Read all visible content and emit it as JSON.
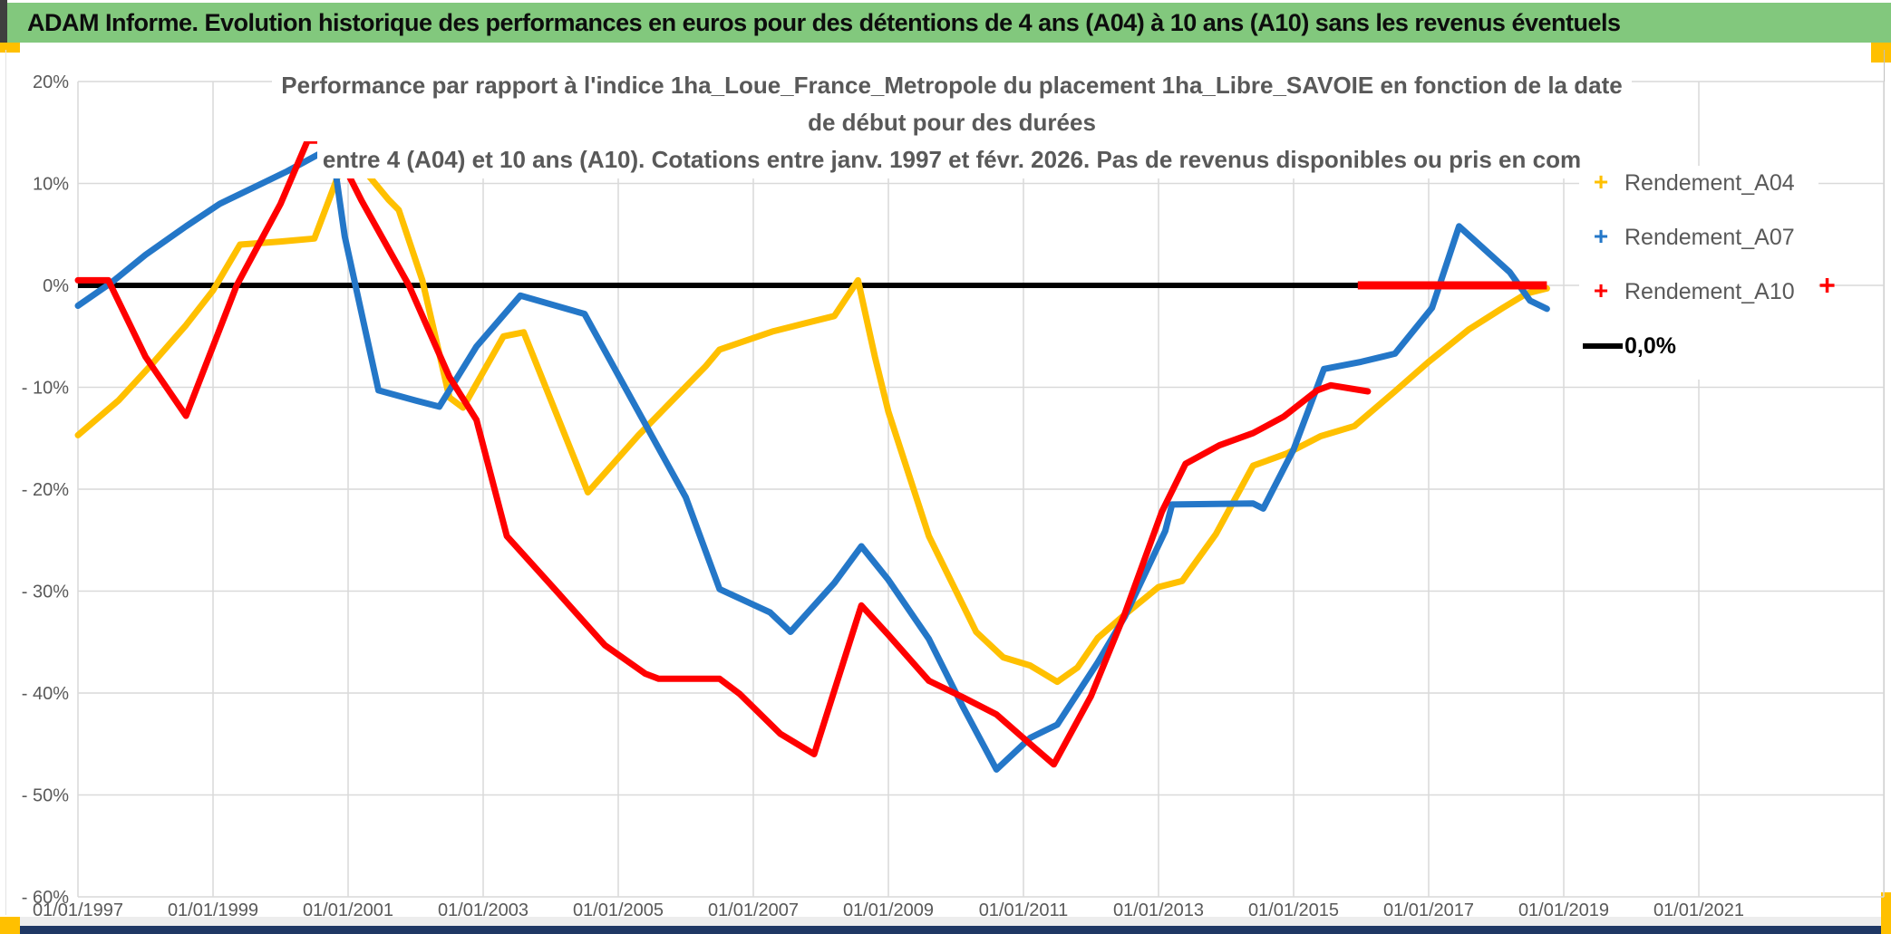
{
  "banner": {
    "title": "ADAM Informe. Evolution historique des performances en euros pour des détentions de 4 ans (A04) à 10 ans (A10) sans les revenus éventuels"
  },
  "colors": {
    "banner_green": "#82c87d",
    "accent_yellow": "#ffc000",
    "bottom_navy": "#1f3864",
    "series_a04": "#ffc000",
    "series_a07": "#2477c8",
    "series_a10": "#ff0000",
    "zero_line": "#000000",
    "grid": "#d9d9d9",
    "axis_text": "#595959",
    "title_text": "#595959"
  },
  "chart_data": {
    "type": "line",
    "title_line1": "Performance par rapport à l'indice 1ha_Loue_France_Metropole  du placement 1ha_Libre_SAVOIE en fonction de la date de début pour des durées",
    "title_line2": "entre 4 (A04) et 10 ans (A10). Cotations entre janv. 1997 et févr. 2026. Pas de revenus disponibles ou pris en com",
    "grid": true,
    "legend_position": "inside-right",
    "x_axis": {
      "tick_years": [
        1997,
        1999,
        2001,
        2003,
        2005,
        2007,
        2009,
        2011,
        2013,
        2015,
        2017,
        2019,
        2021
      ],
      "tick_labels": [
        "01/01/1997",
        "01/01/1999",
        "01/01/2001",
        "01/01/2003",
        "01/01/2005",
        "01/01/2007",
        "01/01/2009",
        "01/01/2011",
        "01/01/2013",
        "01/01/2015",
        "01/01/2017",
        "01/01/2019",
        "01/01/2021"
      ],
      "min_year": 1997.0,
      "max_year": 2023.75
    },
    "y_axis": {
      "unit": "%",
      "tick_values": [
        20,
        10,
        0,
        -10,
        -20,
        -30,
        -40,
        -50,
        -60
      ],
      "tick_labels": [
        "20%",
        "10%",
        "0%",
        "- 10%",
        "- 20%",
        "- 30%",
        "- 40%",
        "- 50%",
        "- 60%"
      ],
      "min": -60,
      "max": 20
    },
    "series": [
      {
        "name": "Rendement_A04",
        "color": "#ffc000",
        "marker": "+",
        "points": [
          [
            1997.0,
            -14.7
          ],
          [
            1997.6,
            -11.3
          ],
          [
            1998.1,
            -7.7
          ],
          [
            1998.6,
            -3.9
          ],
          [
            1999.0,
            -0.5
          ],
          [
            1999.4,
            4.0
          ],
          [
            2000.0,
            4.3
          ],
          [
            2000.5,
            4.6
          ],
          [
            2000.9,
            11.6
          ],
          [
            2001.1,
            12.4
          ],
          [
            2001.6,
            8.4
          ],
          [
            2001.75,
            7.4
          ],
          [
            2002.1,
            0.5
          ],
          [
            2002.5,
            -11.0
          ],
          [
            2002.7,
            -12.0
          ],
          [
            2003.3,
            -5.0
          ],
          [
            2003.6,
            -4.6
          ],
          [
            2004.55,
            -20.3
          ],
          [
            2005.3,
            -14.7
          ],
          [
            2006.3,
            -7.9
          ],
          [
            2006.5,
            -6.3
          ],
          [
            2007.3,
            -4.5
          ],
          [
            2008.2,
            -3.0
          ],
          [
            2008.55,
            0.5
          ],
          [
            2008.8,
            -7.0
          ],
          [
            2009.0,
            -12.4
          ],
          [
            2009.6,
            -24.6
          ],
          [
            2010.3,
            -34.0
          ],
          [
            2010.7,
            -36.5
          ],
          [
            2011.1,
            -37.3
          ],
          [
            2011.5,
            -38.9
          ],
          [
            2011.8,
            -37.5
          ],
          [
            2012.1,
            -34.6
          ],
          [
            2012.5,
            -32.3
          ],
          [
            2013.0,
            -29.6
          ],
          [
            2013.35,
            -29.0
          ],
          [
            2013.85,
            -24.4
          ],
          [
            2014.4,
            -17.7
          ],
          [
            2014.9,
            -16.5
          ],
          [
            2015.4,
            -14.8
          ],
          [
            2015.9,
            -13.8
          ],
          [
            2016.5,
            -10.4
          ],
          [
            2017.0,
            -7.5
          ],
          [
            2017.6,
            -4.3
          ],
          [
            2018.1,
            -2.2
          ],
          [
            2018.45,
            -0.8
          ],
          [
            2018.75,
            -0.3
          ]
        ]
      },
      {
        "name": "Rendement_A07",
        "color": "#2477c8",
        "marker": "+",
        "points": [
          [
            1997.0,
            -2.0
          ],
          [
            1997.5,
            0.3
          ],
          [
            1998.0,
            3.0
          ],
          [
            1998.6,
            5.8
          ],
          [
            1999.1,
            8.0
          ],
          [
            1999.6,
            9.6
          ],
          [
            2000.1,
            11.2
          ],
          [
            2000.6,
            13.0
          ],
          [
            2000.8,
            11.8
          ],
          [
            2000.95,
            4.8
          ],
          [
            2001.45,
            -10.3
          ],
          [
            2002.0,
            -11.3
          ],
          [
            2002.35,
            -11.9
          ],
          [
            2002.9,
            -6.0
          ],
          [
            2003.55,
            -1.0
          ],
          [
            2004.5,
            -2.8
          ],
          [
            2005.3,
            -12.4
          ],
          [
            2006.0,
            -20.8
          ],
          [
            2006.5,
            -29.8
          ],
          [
            2007.25,
            -32.1
          ],
          [
            2007.55,
            -34.0
          ],
          [
            2008.2,
            -29.2
          ],
          [
            2008.6,
            -25.6
          ],
          [
            2009.0,
            -28.9
          ],
          [
            2009.6,
            -34.7
          ],
          [
            2010.1,
            -41.3
          ],
          [
            2010.6,
            -47.5
          ],
          [
            2011.1,
            -44.4
          ],
          [
            2011.5,
            -43.1
          ],
          [
            2012.1,
            -37.0
          ],
          [
            2012.5,
            -32.5
          ],
          [
            2013.1,
            -24.1
          ],
          [
            2013.2,
            -21.5
          ],
          [
            2014.4,
            -21.4
          ],
          [
            2014.55,
            -21.9
          ],
          [
            2015.0,
            -16.1
          ],
          [
            2015.45,
            -8.2
          ],
          [
            2016.0,
            -7.5
          ],
          [
            2016.5,
            -6.7
          ],
          [
            2017.05,
            -2.2
          ],
          [
            2017.45,
            5.8
          ],
          [
            2018.2,
            1.3
          ],
          [
            2018.5,
            -1.5
          ],
          [
            2018.75,
            -2.3
          ]
        ]
      },
      {
        "name": "Rendement_A10",
        "color": "#ff0000",
        "marker": "+",
        "points": [
          [
            1997.0,
            0.5
          ],
          [
            1997.45,
            0.5
          ],
          [
            1998.0,
            -7.0
          ],
          [
            1998.6,
            -12.8
          ],
          [
            1999.35,
            0.0
          ],
          [
            2000.0,
            8.0
          ],
          [
            2000.4,
            14.2
          ],
          [
            2000.75,
            14.2
          ],
          [
            2001.2,
            8.3
          ],
          [
            2001.9,
            0.0
          ],
          [
            2002.5,
            -9.0
          ],
          [
            2002.9,
            -13.2
          ],
          [
            2003.35,
            -24.6
          ],
          [
            2004.1,
            -30.1
          ],
          [
            2004.8,
            -35.3
          ],
          [
            2005.4,
            -38.1
          ],
          [
            2005.6,
            -38.6
          ],
          [
            2006.5,
            -38.6
          ],
          [
            2006.8,
            -40.1
          ],
          [
            2007.4,
            -44.0
          ],
          [
            2007.9,
            -46.0
          ],
          [
            2008.6,
            -31.4
          ],
          [
            2009.0,
            -34.3
          ],
          [
            2009.6,
            -38.8
          ],
          [
            2010.1,
            -40.4
          ],
          [
            2010.6,
            -42.1
          ],
          [
            2011.1,
            -45.0
          ],
          [
            2011.45,
            -47.0
          ],
          [
            2012.0,
            -40.3
          ],
          [
            2012.5,
            -32.2
          ],
          [
            2013.05,
            -22.2
          ],
          [
            2013.4,
            -17.5
          ],
          [
            2013.9,
            -15.7
          ],
          [
            2014.4,
            -14.5
          ],
          [
            2014.85,
            -12.9
          ],
          [
            2015.35,
            -10.3
          ],
          [
            2015.55,
            -9.8
          ],
          [
            2016.1,
            -10.4
          ]
        ],
        "zero_segment": [
          [
            2015.95,
            0.0
          ],
          [
            2018.75,
            0.0
          ]
        ],
        "outlier_point": [
          2022.9,
          0.0
        ]
      }
    ],
    "zero_line": {
      "name": "0,0%",
      "color": "#000000",
      "points": [
        [
          1997.0,
          0.0
        ],
        [
          2016.0,
          0.0
        ]
      ]
    },
    "legend": [
      {
        "label": "Rendement_A04",
        "color": "#ffc000",
        "marker": "+"
      },
      {
        "label": "Rendement_A07",
        "color": "#2477c8",
        "marker": "+"
      },
      {
        "label": "Rendement_A10",
        "color": "#ff0000",
        "marker": "+"
      },
      {
        "label": "0,0%",
        "color": "#000000",
        "marker": "line"
      }
    ]
  }
}
